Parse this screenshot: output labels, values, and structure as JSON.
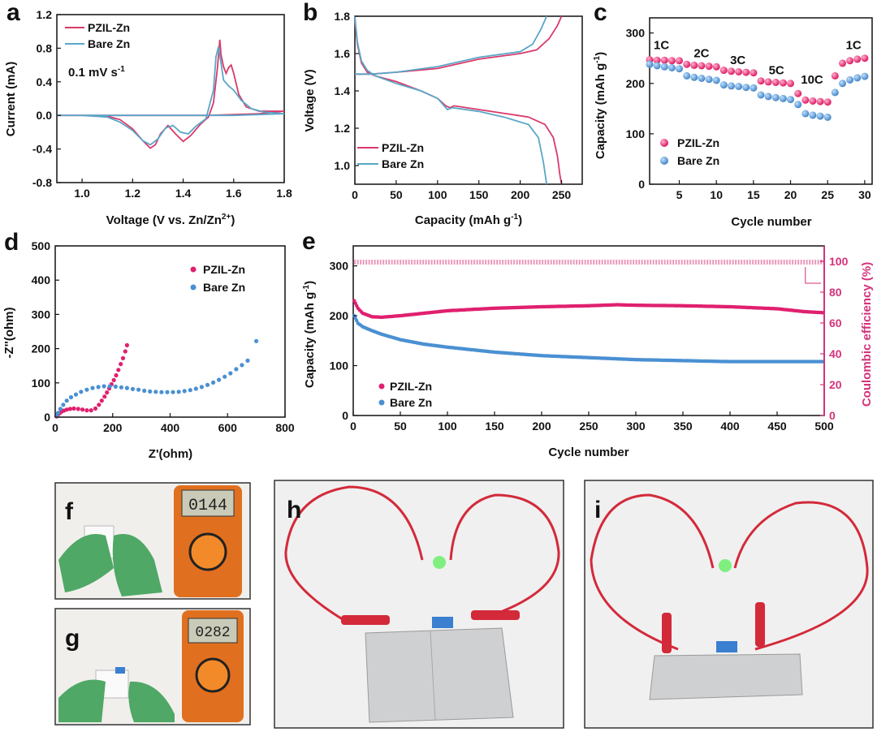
{
  "colors": {
    "pzil": "#e0206f",
    "bare": "#4a90d2",
    "pzil_line": "#d93a6a",
    "bare_line": "#5aa6c8",
    "right_axis": "#d4327a"
  },
  "chart_data": [
    {
      "panel": "a",
      "type": "line",
      "xlabel": "Voltage (V vs. Zn/Zn",
      "xlabel_sup": "2+",
      "xlabel_end": ")",
      "ylabel": "Current (mA)",
      "xlim": [
        0.9,
        1.8
      ],
      "ylim": [
        -0.8,
        1.2
      ],
      "xticks": [
        "1.0",
        "1.2",
        "1.4",
        "1.6",
        "1.8"
      ],
      "yticks": [
        "-0.8",
        "-0.4",
        "0.0",
        "0.4",
        "0.8",
        "1.2"
      ],
      "xtick_values": [
        1.0,
        1.2,
        1.4,
        1.6,
        1.8
      ],
      "ytick_values": [
        -0.8,
        -0.4,
        0.0,
        0.4,
        0.8,
        1.2
      ],
      "annotation": "0.1 mV s",
      "annotation_sup": "-1",
      "legend_placement": "top-left",
      "series": [
        {
          "name": "PZIL-Zn",
          "color_key": "pzil_line",
          "x": [
            0.9,
            1.0,
            1.1,
            1.15,
            1.2,
            1.24,
            1.27,
            1.29,
            1.31,
            1.34,
            1.37,
            1.4,
            1.43,
            1.47,
            1.5,
            1.52,
            1.535,
            1.545,
            1.55,
            1.56,
            1.57,
            1.58,
            1.59,
            1.6,
            1.62,
            1.65,
            1.7,
            1.8,
            1.7,
            1.6,
            1.5,
            1.4,
            1.2,
            1.0,
            0.9
          ],
          "y": [
            0.0,
            0.0,
            -0.01,
            -0.05,
            -0.16,
            -0.3,
            -0.39,
            -0.35,
            -0.22,
            -0.12,
            -0.22,
            -0.31,
            -0.24,
            -0.1,
            -0.02,
            0.15,
            0.55,
            0.9,
            0.72,
            0.58,
            0.5,
            0.57,
            0.6,
            0.5,
            0.25,
            0.1,
            0.05,
            0.05,
            0.02,
            0.01,
            0.0,
            0.0,
            0.0,
            0.0,
            0.0
          ]
        },
        {
          "name": "Bare Zn",
          "color_key": "bare_line",
          "x": [
            0.9,
            1.0,
            1.1,
            1.15,
            1.2,
            1.24,
            1.27,
            1.3,
            1.33,
            1.36,
            1.39,
            1.42,
            1.45,
            1.49,
            1.52,
            1.53,
            1.54,
            1.55,
            1.56,
            1.58,
            1.6,
            1.63,
            1.67,
            1.72,
            1.8,
            1.6,
            1.4,
            1.2,
            1.0,
            0.9
          ],
          "y": [
            0.0,
            0.0,
            -0.02,
            -0.08,
            -0.18,
            -0.3,
            -0.35,
            -0.28,
            -0.15,
            -0.12,
            -0.2,
            -0.22,
            -0.13,
            -0.04,
            0.3,
            0.7,
            0.82,
            0.62,
            0.42,
            0.35,
            0.3,
            0.18,
            0.08,
            0.04,
            0.02,
            0.0,
            0.0,
            0.0,
            0.0,
            0.0
          ]
        }
      ]
    },
    {
      "panel": "b",
      "type": "line",
      "xlabel": "Capacity (mAh g",
      "xlabel_sup": "-1",
      "xlabel_end": ")",
      "ylabel": "Voltage (V)",
      "xlim": [
        0,
        275
      ],
      "ylim": [
        0.9,
        1.8
      ],
      "xticks": [
        "0",
        "50",
        "100",
        "150",
        "200",
        "250"
      ],
      "yticks": [
        "1.0",
        "1.2",
        "1.4",
        "1.6",
        "1.8"
      ],
      "xtick_values": [
        0,
        50,
        100,
        150,
        200,
        250
      ],
      "ytick_values": [
        1.0,
        1.2,
        1.4,
        1.6,
        1.8
      ],
      "legend_placement": "bottom-center",
      "series": [
        {
          "name": "PZIL-Zn",
          "color_key": "pzil_line",
          "segments": [
            {
              "x": [
                0,
                3,
                8,
                15,
                25,
                50,
                80,
                100,
                110,
                115,
                120,
                150,
                180,
                210,
                230,
                240,
                245,
                248,
                250
              ],
              "y": [
                1.78,
                1.65,
                1.55,
                1.5,
                1.48,
                1.45,
                1.4,
                1.36,
                1.32,
                1.31,
                1.32,
                1.3,
                1.28,
                1.26,
                1.22,
                1.15,
                1.05,
                0.95,
                0.9
              ]
            },
            {
              "x": [
                0,
                20,
                50,
                100,
                150,
                200,
                220,
                235,
                245,
                250
              ],
              "y": [
                1.49,
                1.49,
                1.5,
                1.52,
                1.57,
                1.6,
                1.62,
                1.68,
                1.75,
                1.8
              ]
            }
          ]
        },
        {
          "name": "Bare Zn",
          "color_key": "bare_line",
          "segments": [
            {
              "x": [
                0,
                3,
                8,
                15,
                25,
                50,
                80,
                100,
                108,
                112,
                118,
                150,
                180,
                210,
                222,
                228,
                232
              ],
              "y": [
                1.8,
                1.66,
                1.56,
                1.51,
                1.48,
                1.44,
                1.4,
                1.36,
                1.32,
                1.3,
                1.31,
                1.29,
                1.26,
                1.22,
                1.15,
                1.02,
                0.9
              ]
            },
            {
              "x": [
                0,
                20,
                50,
                100,
                150,
                200,
                215,
                225,
                232
              ],
              "y": [
                1.49,
                1.49,
                1.5,
                1.53,
                1.58,
                1.61,
                1.65,
                1.73,
                1.8
              ]
            }
          ]
        }
      ]
    },
    {
      "panel": "c",
      "type": "scatter",
      "xlabel": "Cycle number",
      "ylabel": "Capacity (mAh g",
      "ylabel_sup": "-1",
      "ylabel_end": ")",
      "xlim": [
        1,
        31
      ],
      "ylim": [
        0,
        330
      ],
      "xticks": [
        "5",
        "10",
        "15",
        "20",
        "25",
        "30"
      ],
      "yticks": [
        "0",
        "100",
        "200",
        "300"
      ],
      "xtick_values": [
        5,
        10,
        15,
        20,
        25,
        30
      ],
      "ytick_values": [
        0,
        100,
        200,
        300
      ],
      "rate_labels": [
        "1C",
        "2C",
        "3C",
        "5C",
        "10C",
        "1C"
      ],
      "legend_placement": "bottom-left",
      "series": [
        {
          "name": "PZIL-Zn",
          "color_key": "pzil",
          "x": [
            1,
            2,
            3,
            4,
            5,
            6,
            7,
            8,
            9,
            10,
            11,
            12,
            13,
            14,
            15,
            16,
            17,
            18,
            19,
            20,
            21,
            22,
            23,
            24,
            25,
            26,
            27,
            28,
            29,
            30
          ],
          "y": [
            247,
            246,
            246,
            245,
            245,
            238,
            236,
            235,
            234,
            233,
            226,
            224,
            223,
            222,
            221,
            205,
            203,
            202,
            201,
            200,
            180,
            167,
            165,
            164,
            163,
            215,
            240,
            245,
            248,
            250
          ]
        },
        {
          "name": "Bare Zn",
          "color_key": "bare",
          "x": [
            1,
            2,
            3,
            4,
            5,
            6,
            7,
            8,
            9,
            10,
            11,
            12,
            13,
            14,
            15,
            16,
            17,
            18,
            19,
            20,
            21,
            22,
            23,
            24,
            25,
            26,
            27,
            28,
            29,
            30
          ],
          "y": [
            238,
            235,
            233,
            231,
            229,
            215,
            212,
            210,
            208,
            206,
            197,
            195,
            194,
            192,
            191,
            177,
            174,
            172,
            170,
            168,
            158,
            140,
            137,
            135,
            133,
            182,
            200,
            207,
            211,
            214
          ]
        }
      ]
    },
    {
      "panel": "d",
      "type": "scatter",
      "xlabel": "Z'(ohm)",
      "ylabel": "-Z''(ohm)",
      "xlim": [
        0,
        800
      ],
      "ylim": [
        0,
        500
      ],
      "xticks": [
        "0",
        "200",
        "400",
        "600",
        "800"
      ],
      "yticks": [
        "0",
        "100",
        "200",
        "300",
        "400",
        "500"
      ],
      "xtick_values": [
        0,
        200,
        400,
        600,
        800
      ],
      "ytick_values": [
        0,
        100,
        200,
        300,
        400,
        500
      ],
      "legend_placement": "top-right",
      "series": [
        {
          "name": "PZIL-Zn",
          "color_key": "pzil",
          "x": [
            5,
            10,
            16,
            22,
            30,
            40,
            52,
            65,
            80,
            95,
            110,
            125,
            140,
            152,
            162,
            172,
            180,
            188,
            196,
            204,
            212,
            220,
            228,
            236,
            244,
            250
          ],
          "y": [
            2,
            7,
            12,
            16,
            19,
            22,
            24,
            25,
            24,
            22,
            20,
            20,
            25,
            36,
            48,
            60,
            72,
            84,
            96,
            108,
            122,
            138,
            155,
            172,
            192,
            210
          ]
        },
        {
          "name": "Bare Zn",
          "color_key": "bare",
          "x": [
            5,
            10,
            18,
            28,
            40,
            55,
            72,
            90,
            110,
            130,
            150,
            170,
            190,
            210,
            230,
            250,
            270,
            290,
            310,
            330,
            350,
            370,
            390,
            410,
            430,
            450,
            470,
            490,
            510,
            530,
            550,
            570,
            590,
            610,
            630,
            650,
            670,
            700
          ],
          "y": [
            4,
            12,
            24,
            36,
            48,
            58,
            66,
            74,
            80,
            85,
            88,
            90,
            90,
            89,
            87,
            85,
            82,
            80,
            77,
            75,
            74,
            73,
            73,
            73,
            74,
            76,
            79,
            83,
            88,
            94,
            101,
            109,
            118,
            128,
            140,
            152,
            165,
            222
          ]
        }
      ]
    },
    {
      "panel": "e",
      "type": "scatter",
      "xlabel": "Cycle number",
      "ylabel": "Capacity (mAh g",
      "ylabel_sup": "-1",
      "ylabel_end": ")",
      "y2label": "Coulombic efficiency (%)",
      "xlim": [
        0,
        500
      ],
      "ylim": [
        0,
        340
      ],
      "y2lim": [
        0,
        110
      ],
      "xticks": [
        "0",
        "50",
        "100",
        "150",
        "200",
        "250",
        "300",
        "350",
        "400",
        "450",
        "500"
      ],
      "yticks": [
        "0",
        "100",
        "200",
        "300"
      ],
      "y2ticks": [
        "0",
        "20",
        "40",
        "60",
        "80",
        "100"
      ],
      "xtick_values": [
        0,
        50,
        100,
        150,
        200,
        250,
        300,
        350,
        400,
        450,
        500
      ],
      "ytick_values": [
        0,
        100,
        200,
        300
      ],
      "y2tick_values": [
        0,
        20,
        40,
        60,
        80,
        100
      ],
      "legend_placement": "bottom-left",
      "series": [
        {
          "name": "PZIL-Zn",
          "color_key": "pzil",
          "x": [
            1,
            5,
            10,
            20,
            30,
            50,
            75,
            100,
            150,
            200,
            250,
            280,
            300,
            350,
            400,
            450,
            480,
            500
          ],
          "y": [
            230,
            215,
            205,
            198,
            197,
            200,
            205,
            210,
            215,
            218,
            220,
            222,
            221,
            220,
            218,
            214,
            208,
            206
          ]
        },
        {
          "name": "Bare Zn",
          "color_key": "bare",
          "x": [
            1,
            5,
            10,
            20,
            30,
            50,
            75,
            100,
            150,
            200,
            250,
            300,
            350,
            400,
            450,
            500
          ],
          "y": [
            200,
            185,
            178,
            170,
            163,
            152,
            143,
            137,
            127,
            120,
            116,
            112,
            110,
            108,
            108,
            108
          ]
        },
        {
          "name": "Coulombic efficiency",
          "color_key": "right_axis",
          "axis": "right",
          "x": [
            1,
            500
          ],
          "y": [
            99.5,
            99.5
          ]
        }
      ]
    }
  ],
  "photos": [
    {
      "label": "f",
      "display": "0144"
    },
    {
      "label": "g",
      "display": "0282"
    },
    {
      "label": "h"
    },
    {
      "label": "i"
    }
  ]
}
